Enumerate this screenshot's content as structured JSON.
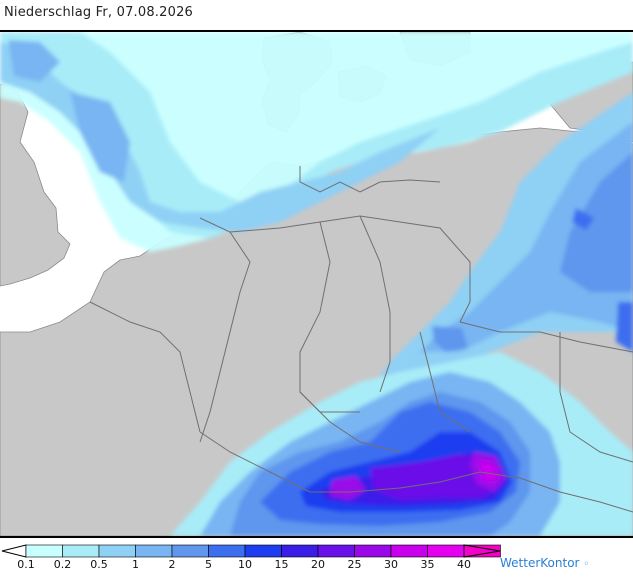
{
  "header": {
    "title": "Niederschlag Fr, 07.08.2026"
  },
  "legend": {
    "ticks": [
      "0.1",
      "0.2",
      "0.5",
      "1",
      "2",
      "5",
      "10",
      "15",
      "20",
      "25",
      "30",
      "35",
      "40"
    ],
    "colors": [
      "#c8ffff",
      "#a8ecf8",
      "#8fd0f5",
      "#78b5f2",
      "#5f96ee",
      "#3c6ef0",
      "#1e3cf0",
      "#3a1ee8",
      "#6a10e8",
      "#9a08e8",
      "#c800ee",
      "#e600f0",
      "#f400c8"
    ],
    "unit_note": ""
  },
  "brand": {
    "name": "WetterKontor",
    "icon": "raindrops-icon"
  },
  "map": {
    "land_color": "#c8c8c8",
    "border_color": "#6e6e6e",
    "sea_color": "#ffffff"
  }
}
